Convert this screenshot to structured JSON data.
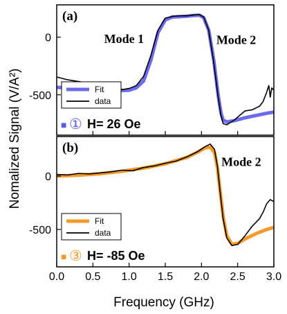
{
  "figure": {
    "ylabel": "Nomalized Signal (V/A²)",
    "xlabel": "Frequency (GHz)"
  },
  "chart_data": [
    {
      "type": "line",
      "panel_label": "(a)",
      "xlim": [
        0.0,
        3.0
      ],
      "ylim": [
        -850,
        280
      ],
      "x_ticks": [
        0.0,
        0.5,
        1.0,
        1.5,
        2.0,
        2.5,
        3.0
      ],
      "x_tick_labels": [
        "0.0",
        "0.5",
        "1.0",
        "1.5",
        "2.0",
        "2.5",
        "3.0"
      ],
      "y_ticks": [
        0,
        -500
      ],
      "y_tick_labels": [
        "0",
        "-500"
      ],
      "annotations": [
        {
          "text": "Mode 1",
          "x": 0.93,
          "y": -50
        },
        {
          "text": "Mode 2",
          "x": 2.48,
          "y": -60
        }
      ],
      "legend": {
        "position": "bottom-left",
        "entries": [
          "Fit",
          "data"
        ]
      },
      "field_label": {
        "marker": "■",
        "circled": "①",
        "text": "H= 26 Oe",
        "color": "#5b5bea"
      },
      "series": [
        {
          "name": "Fit",
          "color": "#6b6bee",
          "x": [
            0.0,
            0.3,
            0.6,
            0.85,
            1.0,
            1.1,
            1.2,
            1.3,
            1.4,
            1.5,
            1.6,
            1.7,
            1.8,
            1.9,
            1.97,
            2.03,
            2.1,
            2.17,
            2.23,
            2.27,
            2.3,
            2.35,
            2.45,
            2.6,
            2.75,
            2.9,
            3.0
          ],
          "y": [
            -435,
            -445,
            -455,
            -465,
            -460,
            -440,
            -380,
            -200,
            40,
            150,
            175,
            178,
            182,
            188,
            190,
            170,
            60,
            -200,
            -500,
            -660,
            -720,
            -735,
            -725,
            -700,
            -680,
            -660,
            -650
          ]
        },
        {
          "name": "data",
          "color": "#000000",
          "x": [
            0.0,
            0.15,
            0.3,
            0.45,
            0.6,
            0.75,
            0.9,
            1.0,
            1.1,
            1.2,
            1.3,
            1.4,
            1.5,
            1.6,
            1.7,
            1.8,
            1.9,
            1.97,
            2.03,
            2.1,
            2.17,
            2.23,
            2.27,
            2.3,
            2.35,
            2.45,
            2.6,
            2.7,
            2.8,
            2.85,
            2.9,
            2.93,
            2.95,
            2.97,
            3.0
          ],
          "y": [
            -345,
            -370,
            -385,
            -400,
            -420,
            -440,
            -455,
            -445,
            -420,
            -340,
            -160,
            60,
            165,
            180,
            185,
            185,
            192,
            195,
            175,
            60,
            -220,
            -520,
            -680,
            -750,
            -760,
            -720,
            -640,
            -630,
            -600,
            -560,
            -480,
            -420,
            -520,
            -440,
            -460
          ]
        }
      ]
    },
    {
      "type": "line",
      "panel_label": "(b)",
      "xlim": [
        0.0,
        3.0
      ],
      "ylim": [
        -850,
        370
      ],
      "x_ticks": [
        0.0,
        0.5,
        1.0,
        1.5,
        2.0,
        2.5,
        3.0
      ],
      "x_tick_labels": [
        "0.0",
        "0.5",
        "1.0",
        "1.5",
        "2.0",
        "2.5",
        "3.0"
      ],
      "y_ticks": [
        0,
        -500
      ],
      "y_tick_labels": [
        "0",
        "-500"
      ],
      "annotations": [
        {
          "text": "Mode 2",
          "x": 2.55,
          "y": 95
        }
      ],
      "legend": {
        "position": "bottom-left",
        "entries": [
          "Fit",
          "data"
        ]
      },
      "field_label": {
        "marker": "■",
        "circled": "③",
        "text": "H= -85 Oe",
        "color": "#f39a2c"
      },
      "series": [
        {
          "name": "Fit",
          "color": "#f39a2c",
          "x": [
            0.0,
            0.3,
            0.6,
            0.9,
            1.2,
            1.5,
            1.8,
            1.95,
            2.05,
            2.12,
            2.18,
            2.22,
            2.26,
            2.3,
            2.35,
            2.42,
            2.5,
            2.6,
            2.75,
            2.9,
            3.0
          ],
          "y": [
            0,
            8,
            22,
            45,
            75,
            115,
            175,
            225,
            265,
            270,
            220,
            80,
            -150,
            -380,
            -560,
            -640,
            -630,
            -590,
            -540,
            -500,
            -480
          ]
        },
        {
          "name": "data",
          "color": "#000000",
          "x": [
            0.0,
            0.15,
            0.3,
            0.45,
            0.6,
            0.75,
            0.9,
            1.05,
            1.2,
            1.35,
            1.5,
            1.65,
            1.8,
            1.95,
            2.05,
            2.12,
            2.18,
            2.22,
            2.26,
            2.3,
            2.35,
            2.42,
            2.5,
            2.6,
            2.7,
            2.8,
            2.85,
            2.9,
            2.95,
            3.0
          ],
          "y": [
            15,
            10,
            25,
            20,
            30,
            40,
            55,
            50,
            80,
            95,
            120,
            140,
            180,
            230,
            275,
            300,
            250,
            90,
            -160,
            -400,
            -580,
            -650,
            -640,
            -560,
            -470,
            -400,
            -340,
            -260,
            -220,
            -240
          ]
        }
      ]
    }
  ]
}
